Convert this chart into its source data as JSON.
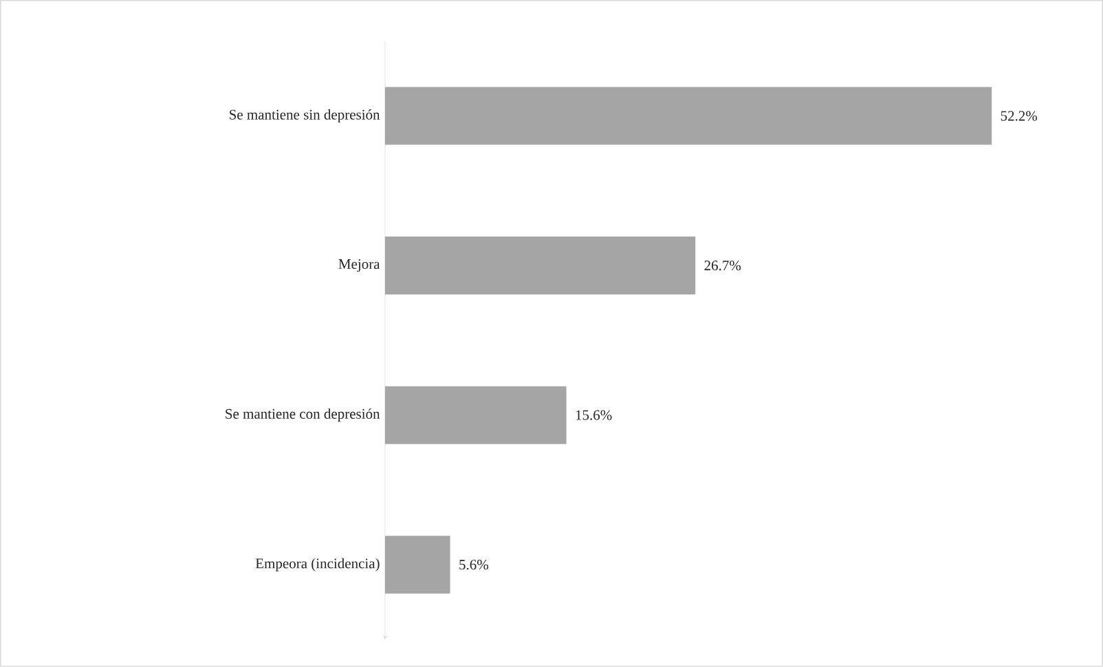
{
  "chart_data": {
    "type": "bar",
    "orientation": "horizontal",
    "categories": [
      "Se mantiene sin depresión",
      "Mejora",
      "Se mantiene con depresión",
      "Empeora (incidencia)"
    ],
    "values": [
      52.2,
      26.7,
      15.6,
      5.6
    ],
    "value_labels": [
      "52.2%",
      "26.7%",
      "15.6%",
      "5.6%"
    ],
    "color": "#a5a5a5"
  }
}
